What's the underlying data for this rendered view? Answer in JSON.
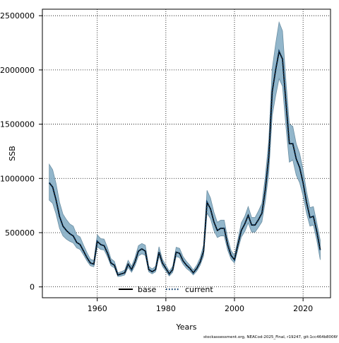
{
  "chart_data": {
    "type": "line",
    "title": "",
    "xlabel": "Years",
    "ylabel": "SSB",
    "xlim": [
      1944,
      2028
    ],
    "ylim": [
      -100000,
      2560000
    ],
    "grid": true,
    "legend_position": "bottom",
    "x_ticks": [
      1960,
      1980,
      2000,
      2020
    ],
    "x_tick_labels": [
      "1960",
      "1980",
      "2000",
      "2020"
    ],
    "y_ticks": [
      0,
      500000,
      1000000,
      1500000,
      2000000,
      2500000
    ],
    "y_tick_labels": [
      "0",
      "500000",
      "1000000",
      "1500000",
      "2000000",
      "2500000"
    ],
    "footnote": "stockassessment.org, NEACod-2025_Final, r19247, git:1cc464b8006f",
    "colors": {
      "band_fill": "#7fa9c2",
      "band_stroke": "#6c8fa3",
      "base_line": "#000000",
      "current_line": "#0b3a66",
      "grid": "#000000"
    },
    "x": [
      1946,
      1947,
      1948,
      1949,
      1950,
      1951,
      1952,
      1953,
      1954,
      1955,
      1956,
      1957,
      1958,
      1959,
      1960,
      1961,
      1962,
      1963,
      1964,
      1965,
      1966,
      1967,
      1968,
      1969,
      1970,
      1971,
      1972,
      1973,
      1974,
      1975,
      1976,
      1977,
      1978,
      1979,
      1980,
      1981,
      1982,
      1983,
      1984,
      1985,
      1986,
      1987,
      1988,
      1989,
      1990,
      1991,
      1992,
      1993,
      1994,
      1995,
      1996,
      1997,
      1998,
      1999,
      2000,
      2001,
      2002,
      2003,
      2004,
      2005,
      2006,
      2007,
      2008,
      2009,
      2010,
      2011,
      2012,
      2013,
      2014,
      2015,
      2016,
      2017,
      2018,
      2019,
      2020,
      2021,
      2022,
      2023,
      2024,
      2025
    ],
    "series": [
      {
        "name": "base",
        "style": "solid",
        "values": [
          960000,
          920000,
          800000,
          650000,
          560000,
          520000,
          490000,
          470000,
          410000,
          390000,
          330000,
          270000,
          220000,
          210000,
          420000,
          390000,
          380000,
          310000,
          220000,
          200000,
          110000,
          120000,
          130000,
          210000,
          160000,
          230000,
          330000,
          350000,
          330000,
          160000,
          140000,
          160000,
          320000,
          220000,
          170000,
          120000,
          160000,
          320000,
          310000,
          240000,
          200000,
          170000,
          130000,
          170000,
          230000,
          330000,
          780000,
          720000,
          600000,
          520000,
          540000,
          540000,
          390000,
          290000,
          250000,
          390000,
          520000,
          580000,
          660000,
          570000,
          570000,
          620000,
          680000,
          900000,
          1200000,
          1800000,
          2000000,
          2170000,
          2100000,
          1700000,
          1320000,
          1320000,
          1180000,
          1100000,
          960000,
          780000,
          640000,
          650000,
          510000,
          340000
        ]
      },
      {
        "name": "current",
        "style": "dotted",
        "values": [
          960000,
          920000,
          800000,
          650000,
          560000,
          520000,
          490000,
          470000,
          410000,
          390000,
          330000,
          270000,
          220000,
          210000,
          420000,
          390000,
          380000,
          310000,
          220000,
          200000,
          110000,
          120000,
          130000,
          210000,
          160000,
          230000,
          330000,
          350000,
          330000,
          160000,
          140000,
          160000,
          320000,
          220000,
          170000,
          120000,
          160000,
          320000,
          310000,
          240000,
          200000,
          170000,
          130000,
          170000,
          230000,
          330000,
          780000,
          720000,
          600000,
          520000,
          540000,
          540000,
          390000,
          290000,
          250000,
          390000,
          520000,
          580000,
          660000,
          570000,
          570000,
          620000,
          680000,
          900000,
          1200000,
          1800000,
          2000000,
          2170000,
          2100000,
          1700000,
          1320000,
          1320000,
          1180000,
          1100000,
          960000,
          780000,
          640000,
          650000,
          510000,
          340000
        ]
      }
    ],
    "confidence_band": {
      "lower": [
        800000,
        770000,
        670000,
        540000,
        470000,
        440000,
        420000,
        405000,
        360000,
        345000,
        295000,
        240000,
        195000,
        185000,
        370000,
        345000,
        340000,
        275000,
        195000,
        175000,
        95000,
        100000,
        110000,
        180000,
        135000,
        195000,
        285000,
        305000,
        290000,
        140000,
        120000,
        140000,
        280000,
        190000,
        145000,
        100000,
        135000,
        280000,
        270000,
        210000,
        170000,
        145000,
        110000,
        145000,
        200000,
        285000,
        680000,
        630000,
        520000,
        455000,
        470000,
        470000,
        340000,
        255000,
        220000,
        345000,
        460000,
        510000,
        590000,
        505000,
        505000,
        550000,
        600000,
        790000,
        1050000,
        1580000,
        1760000,
        1920000,
        1850000,
        1480000,
        1150000,
        1170000,
        1030000,
        960000,
        840000,
        680000,
        560000,
        570000,
        430000,
        250000
      ],
      "upper": [
        1130000,
        1080000,
        950000,
        780000,
        670000,
        620000,
        580000,
        560000,
        480000,
        460000,
        385000,
        315000,
        255000,
        245000,
        480000,
        445000,
        440000,
        360000,
        260000,
        235000,
        130000,
        140000,
        155000,
        245000,
        190000,
        270000,
        380000,
        400000,
        385000,
        190000,
        165000,
        190000,
        370000,
        255000,
        200000,
        145000,
        190000,
        365000,
        355000,
        280000,
        235000,
        200000,
        155000,
        200000,
        270000,
        385000,
        890000,
        820000,
        690000,
        595000,
        615000,
        615000,
        450000,
        335000,
        290000,
        440000,
        590000,
        650000,
        740000,
        640000,
        640000,
        700000,
        770000,
        1020000,
        1350000,
        2010000,
        2240000,
        2440000,
        2360000,
        1900000,
        1500000,
        1480000,
        1320000,
        1230000,
        1080000,
        880000,
        730000,
        740000,
        590000,
        430000
      ]
    }
  }
}
